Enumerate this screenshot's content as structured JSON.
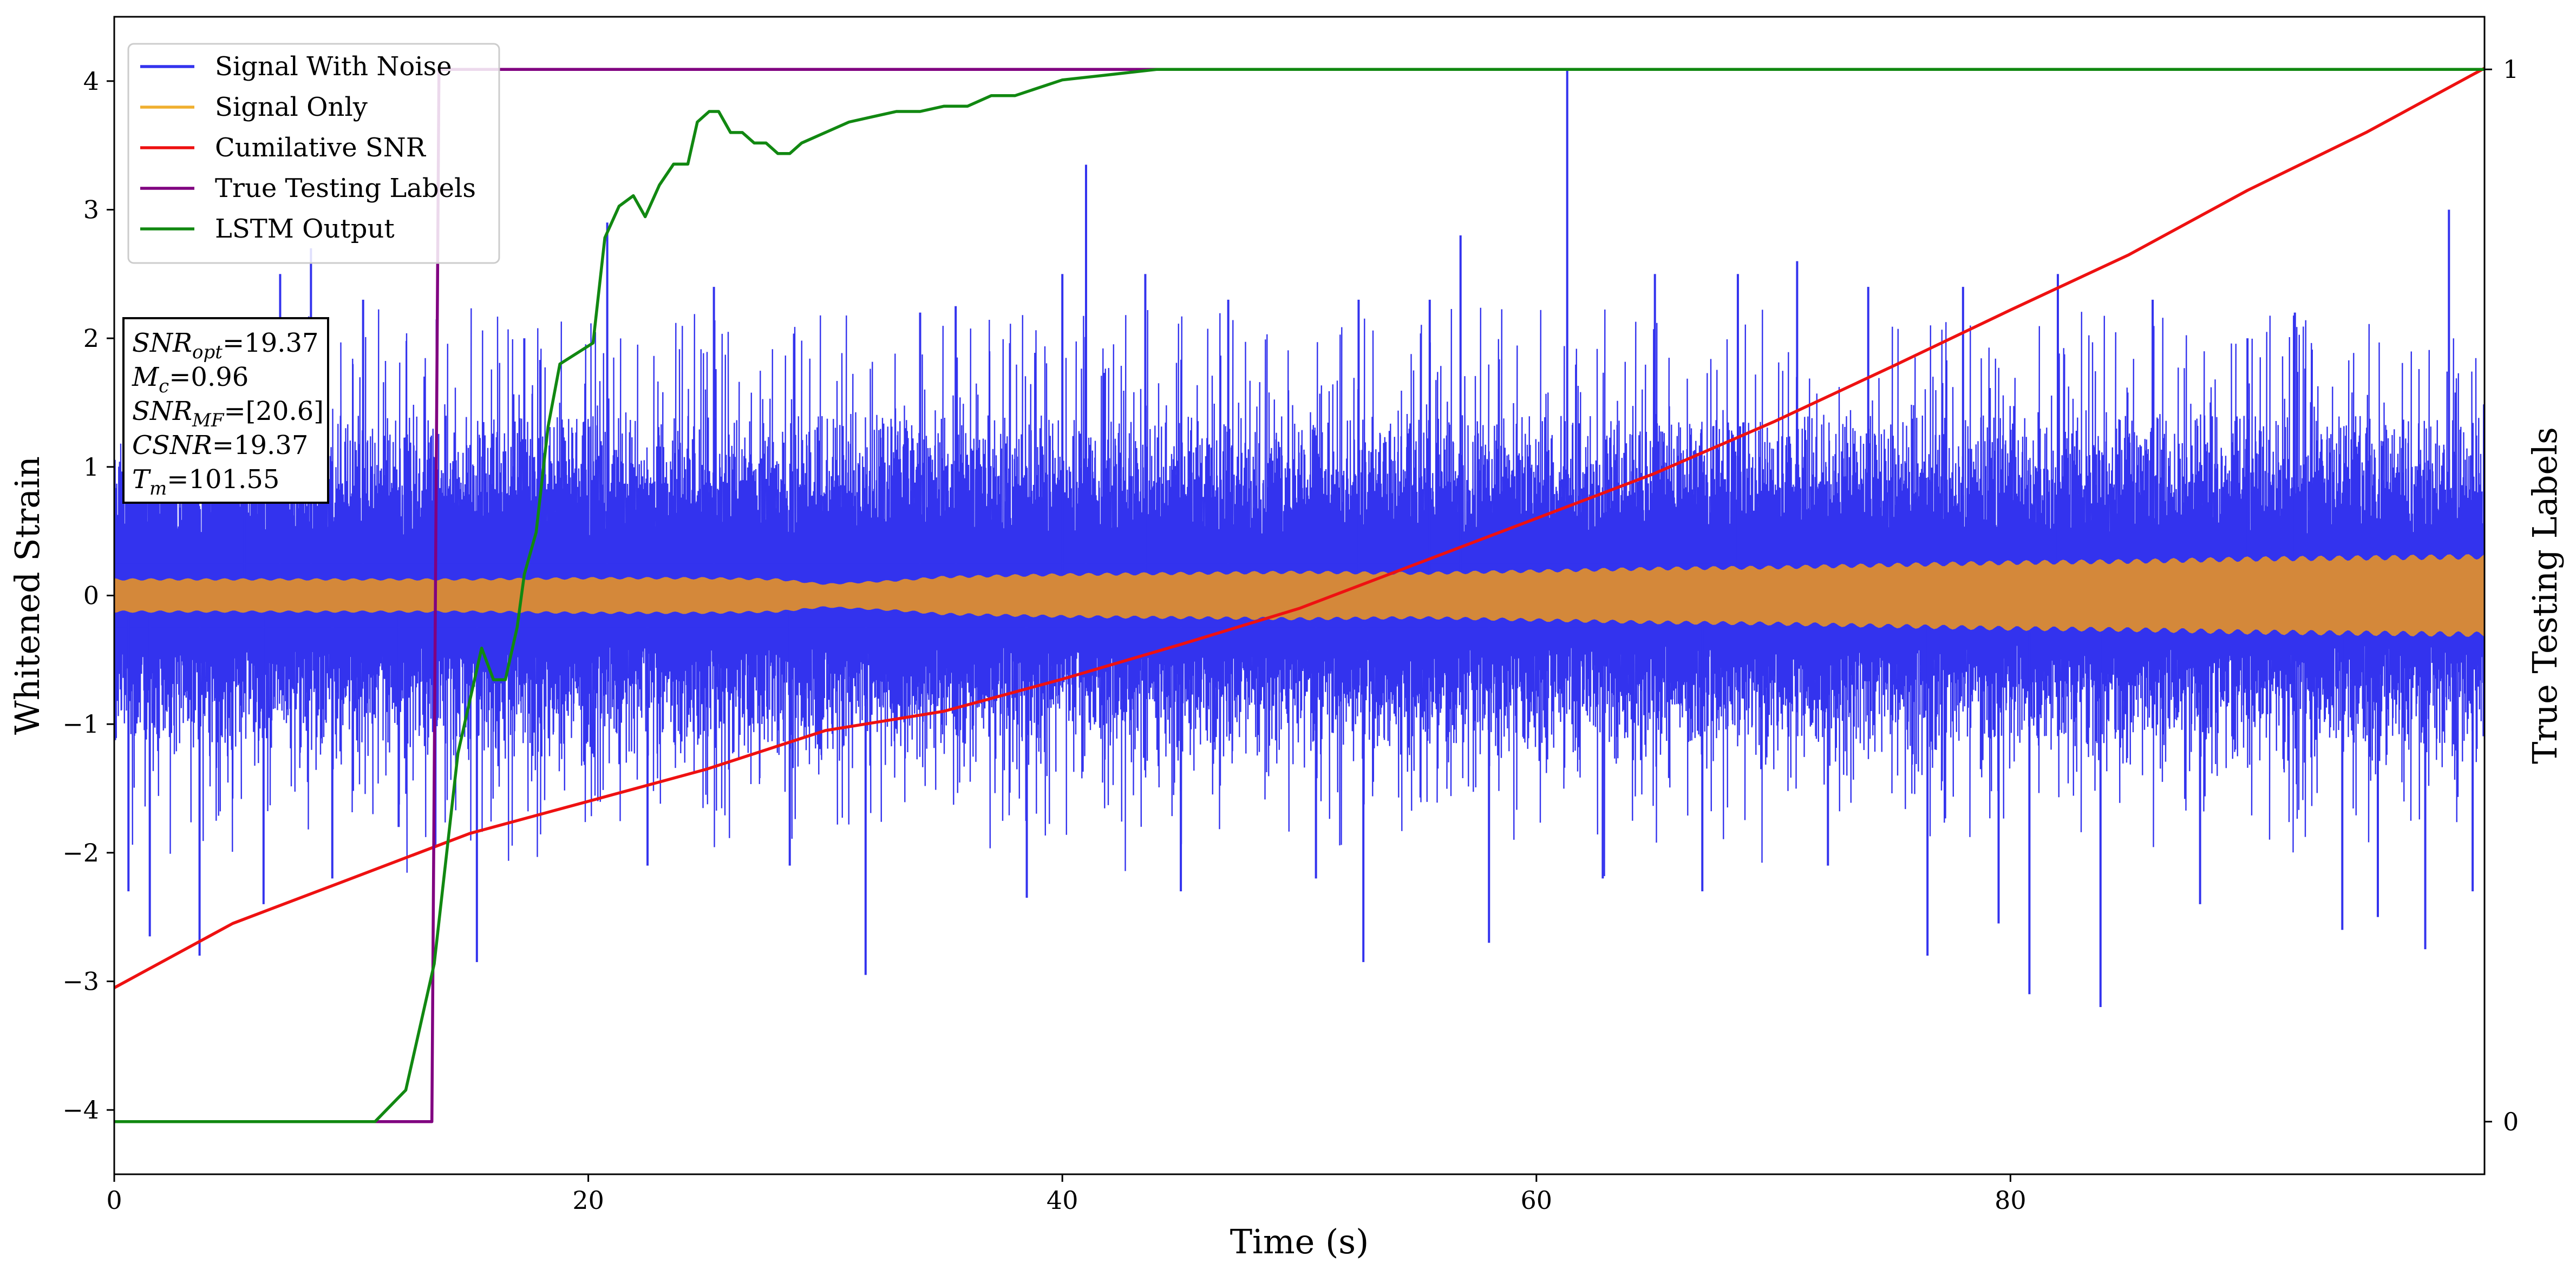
{
  "chart_data": {
    "type": "line",
    "xlabel": "Time (s)",
    "ylabel": "Whitened Strain",
    "y2label": "True Testing Labels",
    "xlim": [
      0,
      100
    ],
    "ylim": [
      -4.5,
      4.5
    ],
    "y2lim": [
      -0.05,
      1.05
    ],
    "xticks": [
      0,
      20,
      40,
      60,
      80
    ],
    "yticks": [
      -4,
      -3,
      -2,
      -1,
      0,
      1,
      2,
      3,
      4
    ],
    "y2ticks": [
      0,
      1
    ],
    "grid": false,
    "legend_position": "top-left",
    "legend": [
      {
        "name": "Signal With Noise",
        "color": "#3333ee"
      },
      {
        "name": "Signal Only",
        "color": "#f0b030"
      },
      {
        "name": "Cumilative SNR",
        "color": "#ee1111"
      },
      {
        "name": "True Testing Labels",
        "color": "#800080"
      },
      {
        "name": "LSTM Output",
        "color": "#118811"
      }
    ],
    "series": [
      {
        "name": "Signal With Noise",
        "color": "#3333ee",
        "kind": "band",
        "band_outer": [
          -1.4,
          1.4
        ],
        "band_inner": [
          -0.25,
          0.25
        ],
        "spikes": [
          {
            "x": 0.6,
            "y": -2.3
          },
          {
            "x": 1.5,
            "y": -2.65
          },
          {
            "x": 3.6,
            "y": -2.8
          },
          {
            "x": 5.5,
            "y": 2.0
          },
          {
            "x": 6.3,
            "y": -2.4
          },
          {
            "x": 7.0,
            "y": 2.5
          },
          {
            "x": 8.3,
            "y": 2.7
          },
          {
            "x": 9.2,
            "y": -2.2
          },
          {
            "x": 10.5,
            "y": 2.3
          },
          {
            "x": 12.0,
            "y": -1.8
          },
          {
            "x": 15.3,
            "y": -2.85
          },
          {
            "x": 17.3,
            "y": 2.0
          },
          {
            "x": 20.8,
            "y": 2.9
          },
          {
            "x": 22.5,
            "y": -2.1
          },
          {
            "x": 25.3,
            "y": 2.4
          },
          {
            "x": 28.5,
            "y": -2.1
          },
          {
            "x": 31.7,
            "y": -2.95
          },
          {
            "x": 34.0,
            "y": 2.2
          },
          {
            "x": 35.5,
            "y": 2.25
          },
          {
            "x": 38.5,
            "y": -2.35
          },
          {
            "x": 40.0,
            "y": 2.5
          },
          {
            "x": 41.0,
            "y": 3.35
          },
          {
            "x": 43.5,
            "y": 2.5
          },
          {
            "x": 45.0,
            "y": -2.3
          },
          {
            "x": 47.0,
            "y": 2.3
          },
          {
            "x": 50.7,
            "y": -2.2
          },
          {
            "x": 52.5,
            "y": 2.3
          },
          {
            "x": 52.7,
            "y": -2.85
          },
          {
            "x": 55.5,
            "y": 2.3
          },
          {
            "x": 56.8,
            "y": 2.8
          },
          {
            "x": 58.0,
            "y": -2.7
          },
          {
            "x": 61.3,
            "y": 4.1
          },
          {
            "x": 62.8,
            "y": -2.2
          },
          {
            "x": 65.0,
            "y": 2.5
          },
          {
            "x": 67.0,
            "y": -2.3
          },
          {
            "x": 68.5,
            "y": 2.5
          },
          {
            "x": 71.0,
            "y": 2.6
          },
          {
            "x": 72.3,
            "y": -2.1
          },
          {
            "x": 74.0,
            "y": 2.4
          },
          {
            "x": 76.5,
            "y": -2.8
          },
          {
            "x": 78.0,
            "y": 2.4
          },
          {
            "x": 79.5,
            "y": -2.55
          },
          {
            "x": 80.8,
            "y": -3.1
          },
          {
            "x": 82.0,
            "y": 2.5
          },
          {
            "x": 83.8,
            "y": -3.2
          },
          {
            "x": 86.0,
            "y": 2.3
          },
          {
            "x": 88.0,
            "y": -2.4
          },
          {
            "x": 90.0,
            "y": 2.0
          },
          {
            "x": 92.0,
            "y": 2.2
          },
          {
            "x": 94.0,
            "y": -2.6
          },
          {
            "x": 95.5,
            "y": -2.5
          },
          {
            "x": 97.5,
            "y": -2.75
          },
          {
            "x": 98.5,
            "y": 3.0
          },
          {
            "x": 99.5,
            "y": -2.3
          }
        ]
      },
      {
        "name": "Signal Only",
        "color": "#f0b030",
        "fill": "#d4883a",
        "kind": "envelope",
        "x": [
          0,
          5,
          10,
          15,
          20,
          25,
          28,
          30,
          33,
          35,
          40,
          45,
          50,
          55,
          60,
          65,
          70,
          75,
          80,
          85,
          90,
          95,
          100
        ],
        "amplitude": [
          0.13,
          0.13,
          0.13,
          0.13,
          0.14,
          0.14,
          0.13,
          0.09,
          0.12,
          0.15,
          0.17,
          0.18,
          0.19,
          0.18,
          0.2,
          0.22,
          0.23,
          0.25,
          0.27,
          0.28,
          0.3,
          0.31,
          0.32
        ]
      },
      {
        "name": "Cumilative SNR",
        "color": "#ee1111",
        "kind": "line",
        "x": [
          0,
          5,
          10,
          15,
          20,
          25,
          30,
          35,
          40,
          45,
          50,
          55,
          60,
          65,
          70,
          75,
          80,
          85,
          90,
          95,
          100
        ],
        "y": [
          -3.05,
          -2.55,
          -2.2,
          -1.85,
          -1.6,
          -1.35,
          -1.05,
          -0.9,
          -0.65,
          -0.38,
          -0.1,
          0.25,
          0.6,
          0.95,
          1.35,
          1.78,
          2.22,
          2.65,
          3.15,
          3.6,
          4.1
        ]
      },
      {
        "name": "True Testing Labels",
        "color": "#800080",
        "kind": "line",
        "axis": "y2",
        "x": [
          0,
          13.4,
          13.7,
          100
        ],
        "y": [
          0,
          0,
          1,
          1
        ]
      },
      {
        "name": "LSTM Output",
        "color": "#118811",
        "kind": "line",
        "axis": "y2",
        "x": [
          0,
          11.0,
          12.3,
          13.5,
          14.5,
          15.5,
          16.0,
          16.5,
          17.0,
          17.3,
          17.8,
          18.3,
          18.8,
          20.2,
          20.7,
          21.3,
          21.9,
          22.4,
          23.0,
          23.6,
          24.2,
          24.6,
          25.1,
          25.5,
          26.0,
          26.5,
          27.0,
          27.5,
          28.0,
          28.5,
          29.0,
          30.0,
          31.0,
          32.0,
          33.0,
          34.0,
          35.0,
          36.0,
          37.0,
          38.0,
          40.0,
          42.0,
          44.0,
          48.0,
          100
        ],
        "y": [
          0,
          0.0,
          0.03,
          0.15,
          0.35,
          0.45,
          0.42,
          0.42,
          0.47,
          0.52,
          0.56,
          0.66,
          0.72,
          0.74,
          0.84,
          0.87,
          0.88,
          0.86,
          0.89,
          0.91,
          0.91,
          0.95,
          0.96,
          0.96,
          0.94,
          0.94,
          0.93,
          0.93,
          0.92,
          0.92,
          0.93,
          0.94,
          0.95,
          0.955,
          0.96,
          0.96,
          0.965,
          0.965,
          0.975,
          0.975,
          0.99,
          0.995,
          1.0,
          1.0,
          1.0
        ]
      }
    ],
    "annotation_box": {
      "position": "upper-left",
      "lines": [
        {
          "main": "SNR",
          "sub": "opt",
          "value": "=19.37"
        },
        {
          "main": "M",
          "sub": "c",
          "value": "=0.96"
        },
        {
          "main": "SNR",
          "sub": "MF",
          "value": "=[20.6]"
        },
        {
          "main": "CSNR",
          "sub": "",
          "value": "=19.37"
        },
        {
          "main": "T",
          "sub": "m",
          "value": "=101.55"
        }
      ]
    }
  }
}
